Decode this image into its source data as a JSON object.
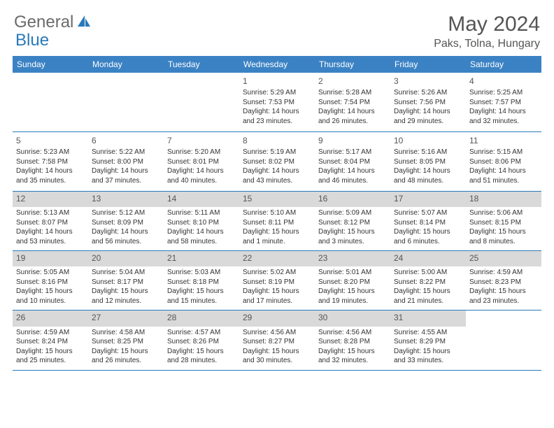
{
  "brand": {
    "part1": "General",
    "part2": "Blue"
  },
  "title": "May 2024",
  "location": "Paks, Tolna, Hungary",
  "colors": {
    "header_bg": "#3b82c4",
    "header_text": "#ffffff",
    "grid_line": "#2a7ab9",
    "today_bg": "#d9d9d9",
    "logo_gray": "#6b6b6b",
    "logo_blue": "#2a7ab9"
  },
  "weekdays": [
    "Sunday",
    "Monday",
    "Tuesday",
    "Wednesday",
    "Thursday",
    "Friday",
    "Saturday"
  ],
  "weeks": [
    [
      {},
      {},
      {},
      {
        "n": "1",
        "sr": "Sunrise: 5:29 AM",
        "ss": "Sunset: 7:53 PM",
        "d1": "Daylight: 14 hours",
        "d2": "and 23 minutes."
      },
      {
        "n": "2",
        "sr": "Sunrise: 5:28 AM",
        "ss": "Sunset: 7:54 PM",
        "d1": "Daylight: 14 hours",
        "d2": "and 26 minutes."
      },
      {
        "n": "3",
        "sr": "Sunrise: 5:26 AM",
        "ss": "Sunset: 7:56 PM",
        "d1": "Daylight: 14 hours",
        "d2": "and 29 minutes."
      },
      {
        "n": "4",
        "sr": "Sunrise: 5:25 AM",
        "ss": "Sunset: 7:57 PM",
        "d1": "Daylight: 14 hours",
        "d2": "and 32 minutes."
      }
    ],
    [
      {
        "n": "5",
        "sr": "Sunrise: 5:23 AM",
        "ss": "Sunset: 7:58 PM",
        "d1": "Daylight: 14 hours",
        "d2": "and 35 minutes."
      },
      {
        "n": "6",
        "sr": "Sunrise: 5:22 AM",
        "ss": "Sunset: 8:00 PM",
        "d1": "Daylight: 14 hours",
        "d2": "and 37 minutes."
      },
      {
        "n": "7",
        "sr": "Sunrise: 5:20 AM",
        "ss": "Sunset: 8:01 PM",
        "d1": "Daylight: 14 hours",
        "d2": "and 40 minutes."
      },
      {
        "n": "8",
        "sr": "Sunrise: 5:19 AM",
        "ss": "Sunset: 8:02 PM",
        "d1": "Daylight: 14 hours",
        "d2": "and 43 minutes."
      },
      {
        "n": "9",
        "sr": "Sunrise: 5:17 AM",
        "ss": "Sunset: 8:04 PM",
        "d1": "Daylight: 14 hours",
        "d2": "and 46 minutes."
      },
      {
        "n": "10",
        "sr": "Sunrise: 5:16 AM",
        "ss": "Sunset: 8:05 PM",
        "d1": "Daylight: 14 hours",
        "d2": "and 48 minutes."
      },
      {
        "n": "11",
        "sr": "Sunrise: 5:15 AM",
        "ss": "Sunset: 8:06 PM",
        "d1": "Daylight: 14 hours",
        "d2": "and 51 minutes."
      }
    ],
    [
      {
        "n": "12",
        "today": true,
        "sr": "Sunrise: 5:13 AM",
        "ss": "Sunset: 8:07 PM",
        "d1": "Daylight: 14 hours",
        "d2": "and 53 minutes."
      },
      {
        "n": "13",
        "today": true,
        "sr": "Sunrise: 5:12 AM",
        "ss": "Sunset: 8:09 PM",
        "d1": "Daylight: 14 hours",
        "d2": "and 56 minutes."
      },
      {
        "n": "14",
        "today": true,
        "sr": "Sunrise: 5:11 AM",
        "ss": "Sunset: 8:10 PM",
        "d1": "Daylight: 14 hours",
        "d2": "and 58 minutes."
      },
      {
        "n": "15",
        "today": true,
        "sr": "Sunrise: 5:10 AM",
        "ss": "Sunset: 8:11 PM",
        "d1": "Daylight: 15 hours",
        "d2": "and 1 minute."
      },
      {
        "n": "16",
        "today": true,
        "sr": "Sunrise: 5:09 AM",
        "ss": "Sunset: 8:12 PM",
        "d1": "Daylight: 15 hours",
        "d2": "and 3 minutes."
      },
      {
        "n": "17",
        "today": true,
        "sr": "Sunrise: 5:07 AM",
        "ss": "Sunset: 8:14 PM",
        "d1": "Daylight: 15 hours",
        "d2": "and 6 minutes."
      },
      {
        "n": "18",
        "today": true,
        "sr": "Sunrise: 5:06 AM",
        "ss": "Sunset: 8:15 PM",
        "d1": "Daylight: 15 hours",
        "d2": "and 8 minutes."
      }
    ],
    [
      {
        "n": "19",
        "today": true,
        "sr": "Sunrise: 5:05 AM",
        "ss": "Sunset: 8:16 PM",
        "d1": "Daylight: 15 hours",
        "d2": "and 10 minutes."
      },
      {
        "n": "20",
        "today": true,
        "sr": "Sunrise: 5:04 AM",
        "ss": "Sunset: 8:17 PM",
        "d1": "Daylight: 15 hours",
        "d2": "and 12 minutes."
      },
      {
        "n": "21",
        "today": true,
        "sr": "Sunrise: 5:03 AM",
        "ss": "Sunset: 8:18 PM",
        "d1": "Daylight: 15 hours",
        "d2": "and 15 minutes."
      },
      {
        "n": "22",
        "today": true,
        "sr": "Sunrise: 5:02 AM",
        "ss": "Sunset: 8:19 PM",
        "d1": "Daylight: 15 hours",
        "d2": "and 17 minutes."
      },
      {
        "n": "23",
        "today": true,
        "sr": "Sunrise: 5:01 AM",
        "ss": "Sunset: 8:20 PM",
        "d1": "Daylight: 15 hours",
        "d2": "and 19 minutes."
      },
      {
        "n": "24",
        "today": true,
        "sr": "Sunrise: 5:00 AM",
        "ss": "Sunset: 8:22 PM",
        "d1": "Daylight: 15 hours",
        "d2": "and 21 minutes."
      },
      {
        "n": "25",
        "today": true,
        "sr": "Sunrise: 4:59 AM",
        "ss": "Sunset: 8:23 PM",
        "d1": "Daylight: 15 hours",
        "d2": "and 23 minutes."
      }
    ],
    [
      {
        "n": "26",
        "today": true,
        "sr": "Sunrise: 4:59 AM",
        "ss": "Sunset: 8:24 PM",
        "d1": "Daylight: 15 hours",
        "d2": "and 25 minutes."
      },
      {
        "n": "27",
        "today": true,
        "sr": "Sunrise: 4:58 AM",
        "ss": "Sunset: 8:25 PM",
        "d1": "Daylight: 15 hours",
        "d2": "and 26 minutes."
      },
      {
        "n": "28",
        "today": true,
        "sr": "Sunrise: 4:57 AM",
        "ss": "Sunset: 8:26 PM",
        "d1": "Daylight: 15 hours",
        "d2": "and 28 minutes."
      },
      {
        "n": "29",
        "today": true,
        "sr": "Sunrise: 4:56 AM",
        "ss": "Sunset: 8:27 PM",
        "d1": "Daylight: 15 hours",
        "d2": "and 30 minutes."
      },
      {
        "n": "30",
        "today": true,
        "sr": "Sunrise: 4:56 AM",
        "ss": "Sunset: 8:28 PM",
        "d1": "Daylight: 15 hours",
        "d2": "and 32 minutes."
      },
      {
        "n": "31",
        "today": true,
        "sr": "Sunrise: 4:55 AM",
        "ss": "Sunset: 8:29 PM",
        "d1": "Daylight: 15 hours",
        "d2": "and 33 minutes."
      },
      {}
    ]
  ]
}
